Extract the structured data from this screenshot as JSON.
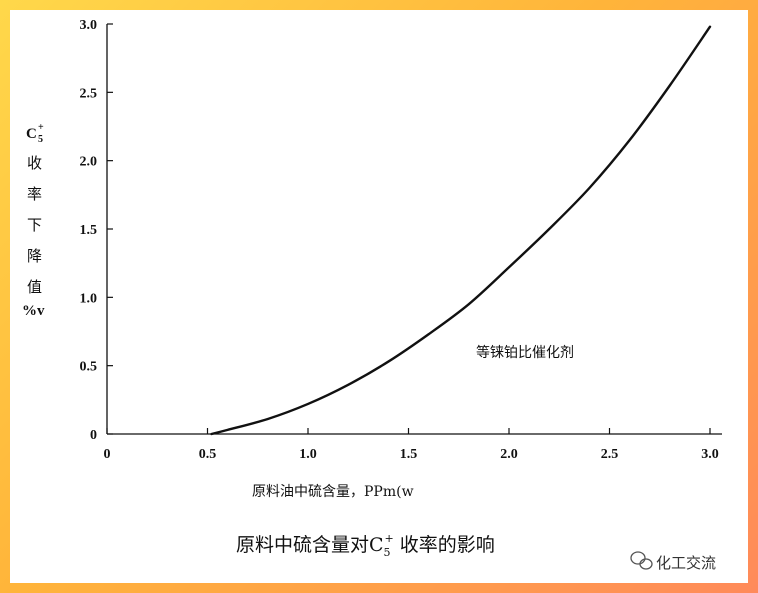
{
  "chart_data": {
    "type": "line",
    "title_main": "原料中硫含量对C",
    "title_sub": "5",
    "title_sup": "+",
    "title_tail": " 收率的影响",
    "xlabel": "原料油中硫含量，PPm(w",
    "ylabel_c": "C",
    "ylabel_sub": "5",
    "ylabel_sup": "+",
    "ylabel_chars": [
      "收",
      "率",
      "下",
      "降",
      "值"
    ],
    "ylabel_unit": "%v",
    "annotation": "等铼铂比催化剂",
    "xlim": [
      0,
      3.0
    ],
    "ylim": [
      0,
      3.0
    ],
    "x_ticks": [
      "0",
      "0.5",
      "1.0",
      "1.5",
      "2.0",
      "2.5",
      "3.0"
    ],
    "y_ticks": [
      "0",
      "0.5",
      "1.0",
      "1.5",
      "2.0",
      "2.5",
      "3.0"
    ],
    "grid": false,
    "series": [
      {
        "x": [
          0.52,
          0.6,
          0.8,
          1.0,
          1.2,
          1.4,
          1.6,
          1.8,
          2.0,
          2.2,
          2.4,
          2.6,
          2.8,
          3.0
        ],
        "values": [
          0.0,
          0.03,
          0.11,
          0.22,
          0.36,
          0.53,
          0.73,
          0.95,
          1.22,
          1.5,
          1.8,
          2.15,
          2.55,
          2.98
        ]
      }
    ]
  },
  "watermark": {
    "icon": "wechat-icon",
    "text": "化工交流"
  }
}
